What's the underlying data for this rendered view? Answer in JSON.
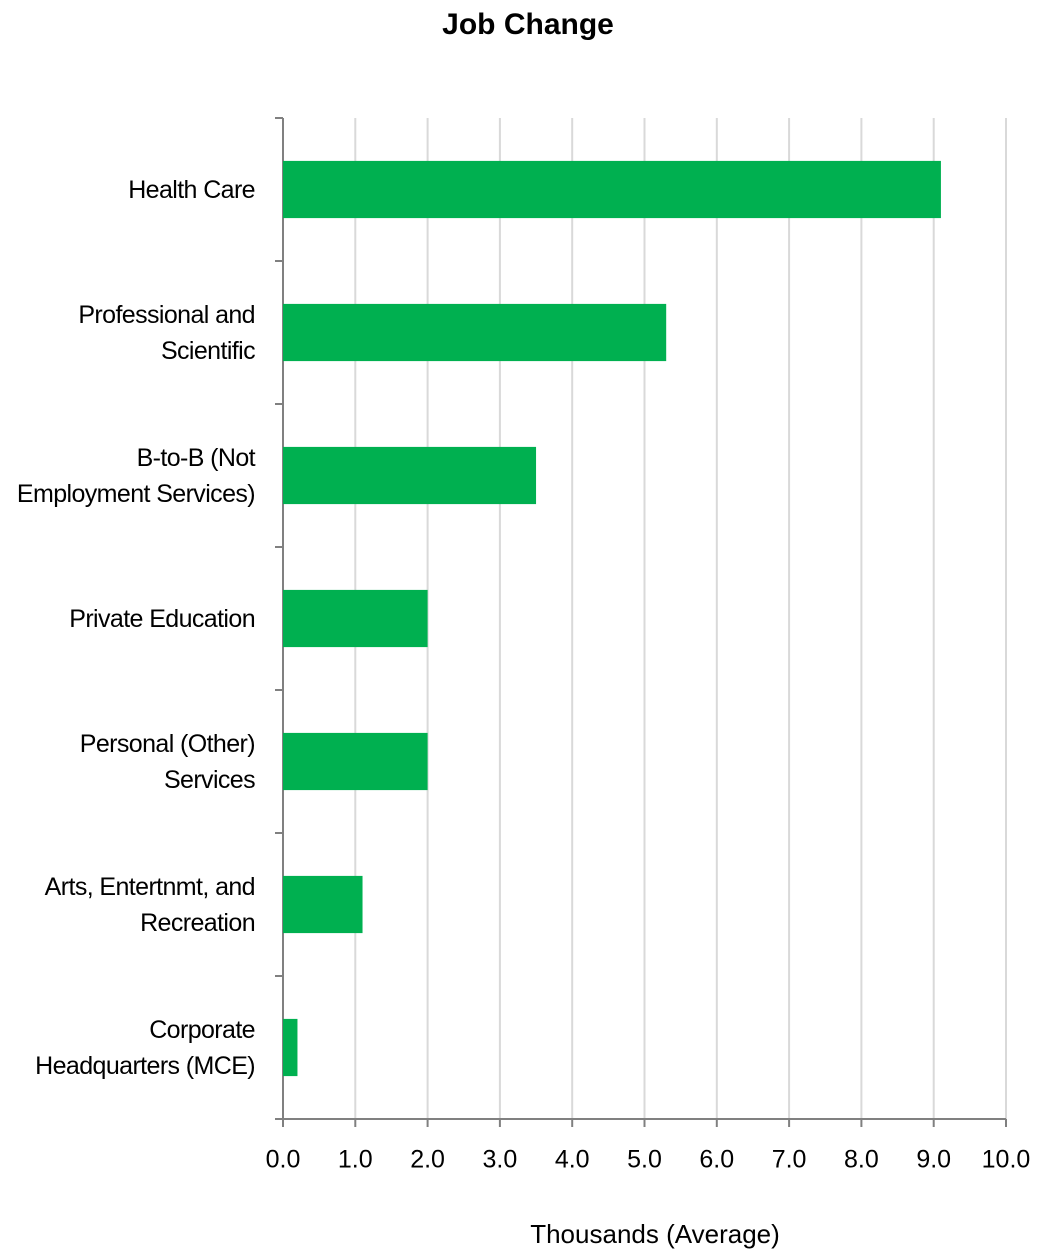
{
  "chart_data": {
    "type": "bar",
    "orientation": "horizontal",
    "title": "Job Change",
    "x_label": "Thousands  (Average)",
    "categories": [
      "Health Care",
      "Professional and Scientific",
      "B-to-B (Not Employment Services)",
      "Private Education",
      "Personal (Other) Services",
      "Arts, Entertnmt, and Recreation",
      "Corporate Headquarters (MCE)"
    ],
    "values": [
      9.1,
      5.3,
      3.5,
      2.0,
      2.0,
      1.1,
      0.2
    ],
    "color": "#00b050",
    "xlim": [
      0,
      10
    ],
    "xticks": [
      {
        "value": 0,
        "label": "0.0"
      },
      {
        "value": 1,
        "label": "1.0"
      },
      {
        "value": 2,
        "label": "2.0"
      },
      {
        "value": 3,
        "label": "3.0"
      },
      {
        "value": 4,
        "label": "4.0"
      },
      {
        "value": 5,
        "label": "5.0"
      },
      {
        "value": 6,
        "label": "6.0"
      },
      {
        "value": 7,
        "label": "7.0"
      },
      {
        "value": 8,
        "label": "8.0"
      },
      {
        "value": 9,
        "label": "9.0"
      },
      {
        "value": 10,
        "label": "10.0"
      }
    ],
    "grid": true
  }
}
